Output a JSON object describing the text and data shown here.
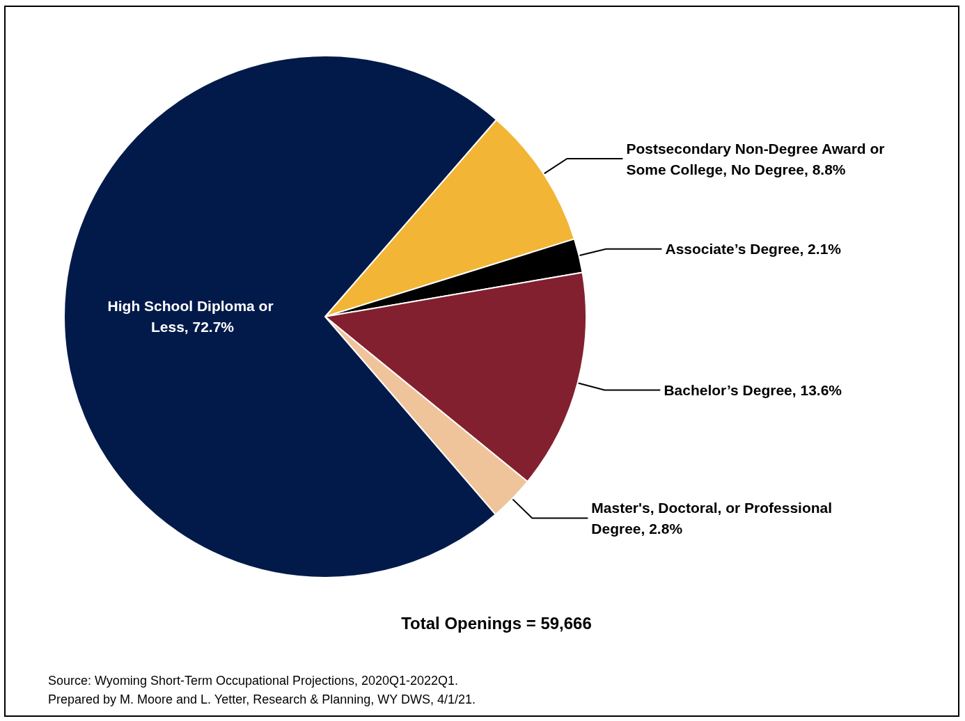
{
  "chart_data": {
    "type": "pie",
    "categories": [
      "Postsecondary Non-Degree Award or Some College, No Degree",
      "Associate’s Degree",
      "Bachelor’s Degree",
      "Master's, Doctoral, or Professional Degree",
      "High School Diploma or Less"
    ],
    "values": [
      8.8,
      2.1,
      13.6,
      2.8,
      72.7
    ],
    "value_labels": [
      "8.8%",
      "2.1%",
      "13.6%",
      "2.8%",
      "72.7%"
    ],
    "colors": [
      "#f2b535",
      "#000000",
      "#83202f",
      "#f0c49a",
      "#021a4a"
    ],
    "legend": false,
    "annotations": [
      "Total Openings = 59,666",
      "Source: Wyoming Short-Term Occupational Projections, 2020Q1-2022Q1.",
      "Prepared by M. Moore and L. Yetter, Research & Planning, WY DWS, 4/1/21."
    ]
  }
}
